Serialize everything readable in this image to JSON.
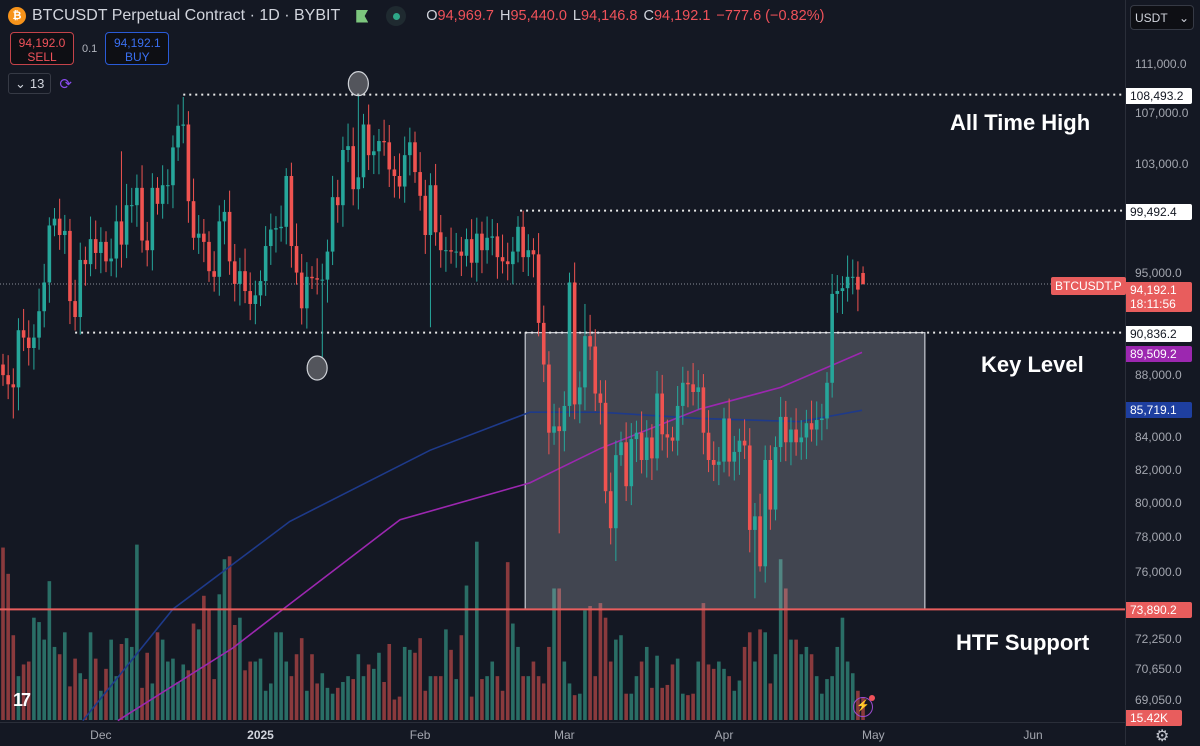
{
  "header": {
    "title": "BTCUSDT Perpetual Contract · 1D · BYBIT",
    "logo_glyph": "₿",
    "ohlc": {
      "o_label": "O",
      "o": "94,969.7",
      "h_label": "H",
      "h": "95,440.0",
      "l_label": "L",
      "l": "94,146.8",
      "c_label": "C",
      "c": "94,192.1",
      "change": "−777.6 (−0.82%)"
    }
  },
  "trade": {
    "sell_price": "94,192.0",
    "sell_label": "SELL",
    "spread": "0.1",
    "buy_price": "94,192.1",
    "buy_label": "BUY"
  },
  "indicators": {
    "count": "13",
    "chevron": "⌄",
    "sync_icon": "⟳"
  },
  "currency": {
    "label": "USDT",
    "chevron": "⌄"
  },
  "annotations": {
    "ath": "All Time High",
    "key": "Key Level",
    "htf": "HTF Support"
  },
  "price_labels": {
    "ath": "108,493.2",
    "resistance": "99,492.4",
    "last": "94,192.1",
    "countdown": "18:11:56",
    "symbol": "BTCUSDT.P",
    "key_level": "90,836.2",
    "ma_purple": "89,509.2",
    "ma_blue": "85,719.1",
    "support": "73,890.2",
    "volume": "15.42K"
  },
  "colors": {
    "up": "#26a69a",
    "down": "#ef5350",
    "up_vol": "#2a6e66",
    "down_vol": "#8a3a3d",
    "ma_purple": "#9c27b0",
    "ma_blue": "#1e3a8a",
    "support": "#e85d5d"
  },
  "chart_data": {
    "type": "candlestick",
    "title": "BTCUSDT Perpetual Contract · 1D · BYBIT",
    "scale": "log",
    "start_date": "2024-11-12",
    "ylim": [
      68000,
      112500
    ],
    "y_ticks": [
      {
        "v": 111000,
        "label": "111,000.0"
      },
      {
        "v": 107000,
        "label": "107,000.0"
      },
      {
        "v": 103000,
        "label": "103,000.0"
      },
      {
        "v": 95000,
        "label": "95,000.0"
      },
      {
        "v": 88000,
        "label": "88,000.0"
      },
      {
        "v": 84000,
        "label": "84,000.0"
      },
      {
        "v": 82000,
        "label": "82,000.0"
      },
      {
        "v": 80000,
        "label": "80,000.0"
      },
      {
        "v": 78000,
        "label": "78,000.0"
      },
      {
        "v": 76000,
        "label": "76,000.0"
      },
      {
        "v": 72250,
        "label": "72,250.0"
      },
      {
        "v": 70650,
        "label": "70,650.0"
      },
      {
        "v": 69050,
        "label": "69,050.0"
      }
    ],
    "x_ticks": [
      {
        "i": 19,
        "label": "Dec"
      },
      {
        "i": 50,
        "label": "2025",
        "bold": true
      },
      {
        "i": 81,
        "label": "Feb"
      },
      {
        "i": 109,
        "label": "Mar"
      },
      {
        "i": 140,
        "label": "Apr"
      },
      {
        "i": 169,
        "label": "May"
      },
      {
        "i": 200,
        "label": "Jun"
      }
    ],
    "first_open_k": 88.7,
    "close_k": [
      88.0,
      87.4,
      87.2,
      91.0,
      90.5,
      89.8,
      90.5,
      92.3,
      94.3,
      98.4,
      98.9,
      97.7,
      98.0,
      93.0,
      91.9,
      95.9,
      95.6,
      97.4,
      96.4,
      97.2,
      95.8,
      96.0,
      98.7,
      97.0,
      99.9,
      99.9,
      101.2,
      97.3,
      96.6,
      101.2,
      100.0,
      101.4,
      101.4,
      104.3,
      106.0,
      106.1,
      100.2,
      97.5,
      97.8,
      97.2,
      95.1,
      94.7,
      98.7,
      99.4,
      95.8,
      94.2,
      95.1,
      93.7,
      92.8,
      93.4,
      94.4,
      96.9,
      98.1,
      98.2,
      98.3,
      102.1,
      96.9,
      95.0,
      92.5,
      94.7,
      94.6,
      94.5,
      94.5,
      96.5,
      100.5,
      99.9,
      104.1,
      104.4,
      101.1,
      102.0,
      106.1,
      103.7,
      104.0,
      104.8,
      104.7,
      102.6,
      102.1,
      101.3,
      103.7,
      104.7,
      102.4,
      100.6,
      97.7,
      101.4,
      97.9,
      96.6,
      96.6,
      96.5,
      96.5,
      96.2,
      97.4,
      95.7,
      97.8,
      96.6,
      97.5,
      97.6,
      96.1,
      95.8,
      95.6,
      96.5,
      98.3,
      96.1,
      96.6,
      96.3,
      91.5,
      88.7,
      84.3,
      84.7,
      84.4,
      86.0,
      94.3,
      86.1,
      87.2,
      90.6,
      89.9,
      86.8,
      86.2,
      80.7,
      78.5,
      82.9,
      83.7,
      81.0,
      83.9,
      84.3,
      82.6,
      84.0,
      82.7,
      86.8,
      84.2,
      84.0,
      83.8,
      86.0,
      87.5,
      87.4,
      86.9,
      87.2,
      84.3,
      82.6,
      82.3,
      82.5,
      85.2,
      82.5,
      83.1,
      83.8,
      83.5,
      78.4,
      79.2,
      76.3,
      82.6,
      79.6,
      83.4,
      85.3,
      83.7,
      84.5,
      83.7,
      84.0,
      84.9,
      84.5,
      85.1,
      85.2,
      87.5,
      93.5,
      93.7,
      93.9,
      94.7,
      94.7,
      93.8,
      94.1921
    ],
    "high_overrides_k": {
      "9": 99.0,
      "23": 104.0,
      "35": 108.3,
      "55": 102.7,
      "69": 108.49,
      "101": 99.49,
      "110": 95.0,
      "113": 92.8,
      "148": 83.5,
      "166": 95.8,
      "167": 95.44
    },
    "low_overrides_k": {
      "2": 85.2,
      "62": 89.2,
      "83": 91.2,
      "108": 78.2,
      "119": 76.6,
      "145": 77.1,
      "146": 74.5,
      "147": 76.0,
      "167": 94.1468
    },
    "last_open_k": 94.9697,
    "volume_k": [
      118,
      100,
      58,
      30,
      38,
      40,
      70,
      67,
      55,
      95,
      50,
      45,
      60,
      23,
      42,
      32,
      28,
      60,
      42,
      20,
      35,
      55,
      30,
      52,
      56,
      50,
      120,
      22,
      46,
      25,
      60,
      55,
      40,
      42,
      26,
      38,
      34,
      66,
      62,
      85,
      76,
      28,
      86,
      110,
      112,
      65,
      70,
      34,
      40,
      40,
      42,
      20,
      25,
      60,
      60,
      40,
      30,
      45,
      56,
      20,
      45,
      25,
      32,
      22,
      18,
      22,
      26,
      30,
      28,
      45,
      30,
      38,
      35,
      46,
      26,
      52,
      14,
      16,
      50,
      48,
      46,
      56,
      20,
      30,
      30,
      30,
      62,
      48,
      28,
      58,
      92,
      16,
      122,
      28,
      30,
      40,
      30,
      20,
      108,
      66,
      50,
      30,
      30,
      40,
      30,
      25,
      50,
      90,
      90,
      40,
      25,
      17,
      18,
      75,
      78,
      30,
      80,
      70,
      40,
      55,
      58,
      18,
      18,
      30,
      40,
      50,
      22,
      44,
      22,
      24,
      38,
      42,
      18,
      17,
      18,
      40,
      80,
      38,
      35,
      40,
      35,
      30,
      20,
      27,
      50,
      60,
      40,
      62,
      60,
      25,
      45,
      110,
      90,
      55,
      55,
      45,
      50,
      45,
      30,
      18,
      28,
      30,
      50,
      70,
      40,
      32,
      20,
      15.42
    ],
    "ma_blue_points": [
      [
        15.5,
        68000
      ],
      [
        33,
        73900
      ],
      [
        55.7,
        78900
      ],
      [
        82.9,
        83200
      ],
      [
        102.3,
        85600
      ],
      [
        115.9,
        85600
      ],
      [
        135.3,
        85200
      ],
      [
        154.8,
        85000
      ],
      [
        166.8,
        85719.1
      ]
    ],
    "ma_purple_points": [
      [
        22.3,
        68000
      ],
      [
        44.7,
        71800
      ],
      [
        54.4,
        73900
      ],
      [
        77.1,
        79000
      ],
      [
        102.3,
        81200
      ],
      [
        115.9,
        83300
      ],
      [
        135.3,
        85800
      ],
      [
        151,
        87200
      ],
      [
        166.8,
        89509.2
      ]
    ],
    "levels": [
      {
        "name": "ath-line",
        "value": 108493.2,
        "from": 35,
        "style": "dotted"
      },
      {
        "name": "resistance-line",
        "value": 99492.4,
        "from": 100.4,
        "style": "dotted"
      },
      {
        "name": "key-level-line",
        "value": 90836.2,
        "from": 14,
        "style": "dotted"
      },
      {
        "name": "last-price-line",
        "value": 94192.1,
        "from": 0,
        "style": "price"
      },
      {
        "name": "htf-support-line",
        "value": 73890.2,
        "from": 0,
        "style": "solid"
      }
    ],
    "zone": {
      "from": 101.4,
      "to": 179,
      "top": 90836.2,
      "bottom": 73890.2
    },
    "markers": [
      {
        "i": 69,
        "value": 108493.2,
        "name": "ath-marker"
      },
      {
        "i": 61,
        "value": 89200,
        "name": "low-marker"
      }
    ]
  }
}
